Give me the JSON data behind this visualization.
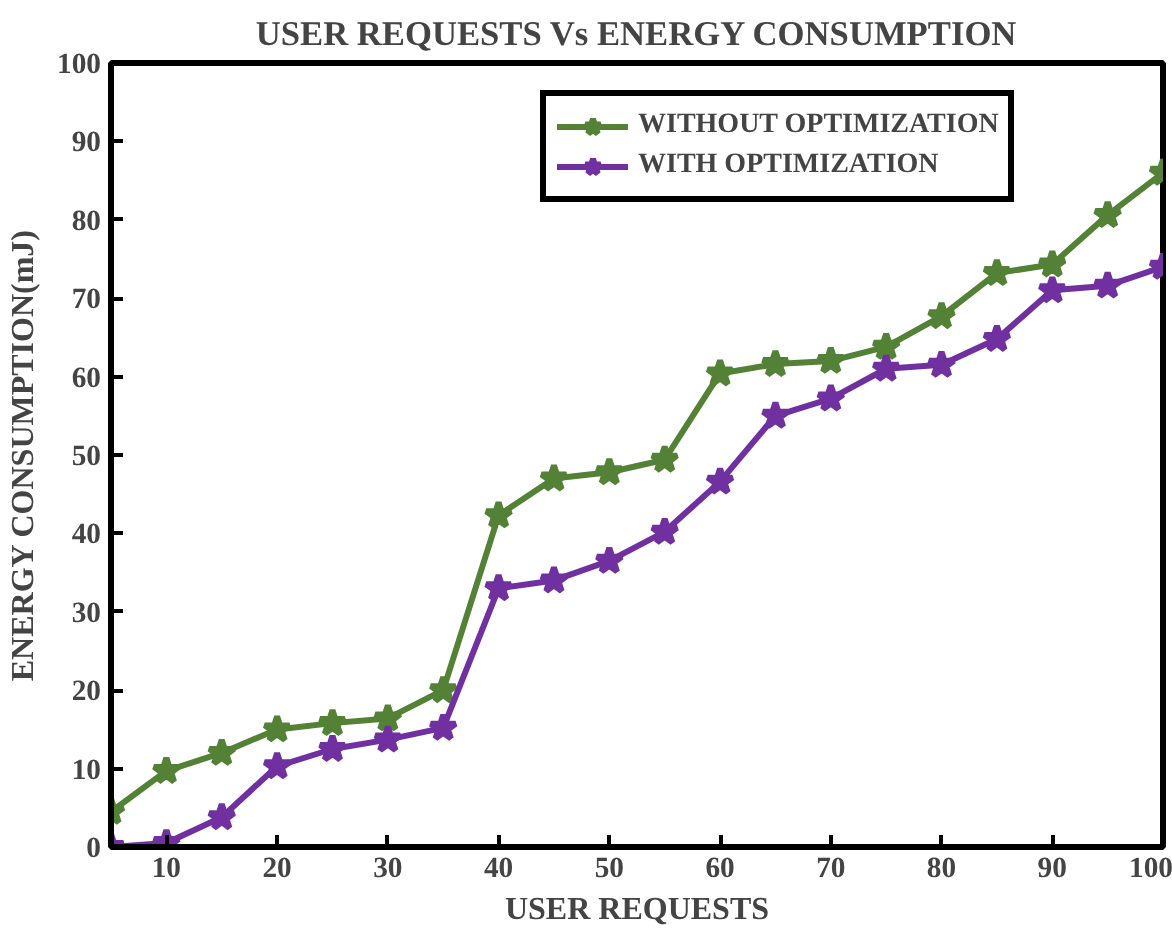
{
  "chart_data": {
    "type": "line",
    "title": "USER REQUESTS Vs ENERGY CONSUMPTION",
    "xlabel": "USER REQUESTS",
    "ylabel": "ENERGY CONSUMPTION(mJ)",
    "x": [
      5,
      10,
      15,
      20,
      25,
      30,
      35,
      40,
      45,
      50,
      55,
      60,
      65,
      70,
      75,
      80,
      85,
      90,
      95,
      100
    ],
    "series": [
      {
        "name": "WITHOUT OPTIMIZATION",
        "color": "#538135",
        "values": [
          4.5,
          9.7,
          12,
          15,
          15.8,
          16.4,
          20,
          42.3,
          47,
          47.8,
          49.4,
          60.4,
          61.6,
          62,
          63.8,
          67.7,
          73.2,
          74.3,
          80.6,
          86
        ]
      },
      {
        "name": "WITH OPTIMIZATION",
        "color": "#7030a0",
        "values": [
          0,
          0.5,
          3.8,
          10.3,
          12.5,
          13.7,
          15.2,
          33,
          34,
          36.5,
          40.2,
          46.6,
          55,
          57.2,
          61,
          61.5,
          64.8,
          71,
          71.6,
          74
        ]
      }
    ],
    "xlim": [
      5,
      100
    ],
    "xticks": [
      10,
      20,
      30,
      40,
      50,
      60,
      70,
      80,
      90,
      100
    ],
    "ylim": [
      0,
      100
    ],
    "yticks": [
      0,
      10,
      20,
      30,
      40,
      50,
      60,
      70,
      80,
      90,
      100
    ],
    "grid": false,
    "legend": "top right",
    "marker": "star",
    "line_style": "solid"
  }
}
